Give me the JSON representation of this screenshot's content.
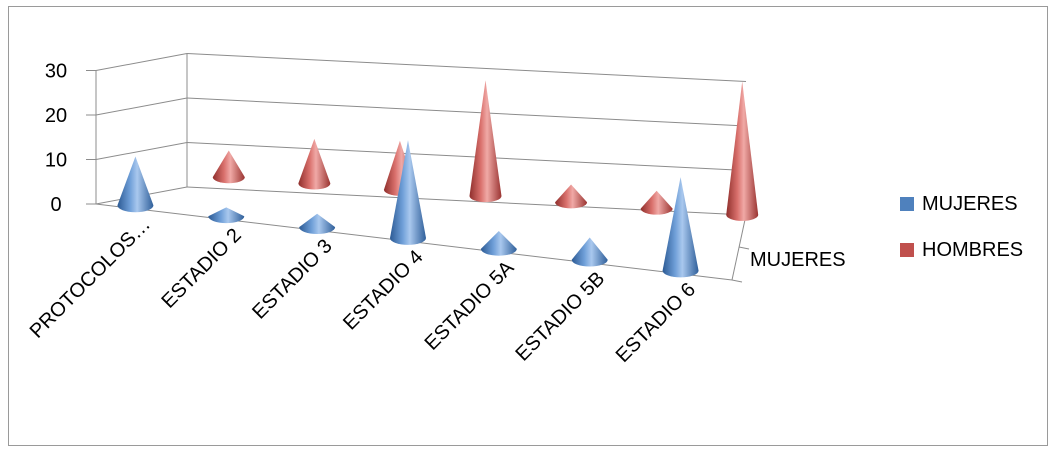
{
  "chart_data": {
    "type": "bar",
    "shape": "3d-cone",
    "categories": [
      "PROTOCOLOS…",
      "ESTADIO 2",
      "ESTADIO 3",
      "ESTADIO 4",
      "ESTADIO 5A",
      "ESTADIO 5B",
      "ESTADIO 6"
    ],
    "series": [
      {
        "name": "MUJERES",
        "values": [
          11,
          2,
          3,
          22,
          4,
          5,
          21
        ],
        "color": "#4f81bd"
      },
      {
        "name": "HOMBRES",
        "values": [
          6,
          10,
          11,
          26,
          4,
          4,
          30
        ],
        "color": "#c0504d"
      }
    ],
    "depth_axis_label": "MUJERES",
    "y_ticks": [
      "0",
      "10",
      "20",
      "30"
    ],
    "ylim": [
      0,
      30
    ],
    "gridlines": true,
    "legend_position": "right",
    "title": "",
    "xlabel": "",
    "ylabel": ""
  },
  "legend": {
    "items": [
      {
        "label": "MUJERES",
        "color": "#4f81bd"
      },
      {
        "label": "HOMBRES",
        "color": "#c0504d"
      }
    ]
  }
}
